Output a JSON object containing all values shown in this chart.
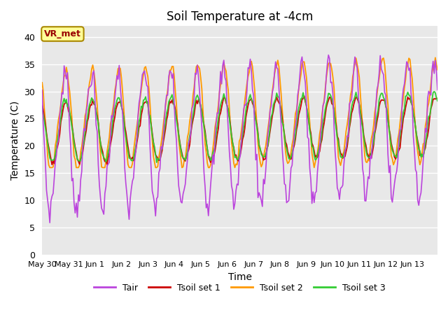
{
  "title": "Soil Temperature at -4cm",
  "xlabel": "Time",
  "ylabel": "Temperature (C)",
  "ylim": [
    0,
    42
  ],
  "yticks": [
    0,
    5,
    10,
    15,
    20,
    25,
    30,
    35,
    40
  ],
  "bg_color": "#e8e8e8",
  "legend_labels": [
    "Tair",
    "Tsoil set 1",
    "Tsoil set 2",
    "Tsoil set 3"
  ],
  "line_colors": [
    "#bb44dd",
    "#cc0000",
    "#ff9900",
    "#33cc33"
  ],
  "annotation_text": "VR_met",
  "annotation_color": "#990000",
  "annotation_bg": "#ffff99",
  "annotation_border": "#aa8800"
}
